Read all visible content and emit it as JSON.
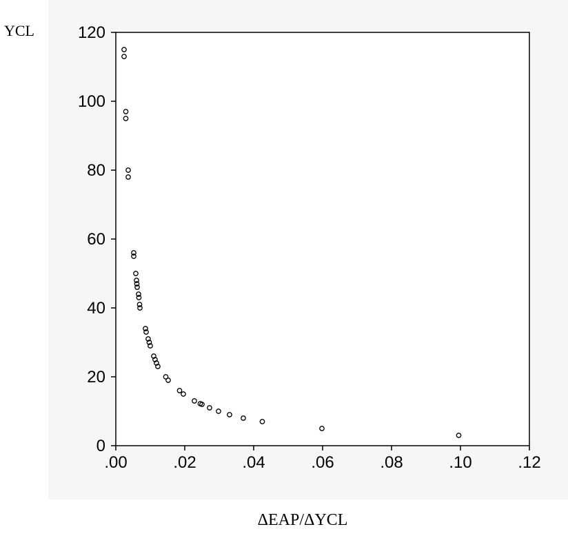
{
  "chart_data": {
    "type": "scatter",
    "title": "",
    "xlabel": "ΔEAP/ΔYCL",
    "ylabel": "YCL",
    "xlim": [
      0,
      0.12
    ],
    "ylim": [
      0,
      120
    ],
    "x_ticks": [
      ".00",
      ".02",
      ".04",
      ".06",
      ".08",
      ".10",
      ".12"
    ],
    "y_ticks": [
      "0",
      "20",
      "40",
      "60",
      "80",
      "100",
      "120"
    ],
    "grid": false,
    "legend": "none",
    "marker": "hollow-circle",
    "color": "#000000",
    "series": [
      {
        "points": [
          [
            0.0024,
            115
          ],
          [
            0.0024,
            113
          ],
          [
            0.0029,
            97
          ],
          [
            0.0029,
            95
          ],
          [
            0.0036,
            80
          ],
          [
            0.0036,
            78
          ],
          [
            0.0052,
            56
          ],
          [
            0.0052,
            55
          ],
          [
            0.0058,
            50
          ],
          [
            0.006,
            48
          ],
          [
            0.0061,
            47
          ],
          [
            0.0062,
            46
          ],
          [
            0.0066,
            44
          ],
          [
            0.0067,
            43
          ],
          [
            0.0069,
            41
          ],
          [
            0.007,
            40
          ],
          [
            0.0086,
            34
          ],
          [
            0.0088,
            33
          ],
          [
            0.0094,
            31
          ],
          [
            0.0097,
            30
          ],
          [
            0.01,
            29
          ],
          [
            0.011,
            26
          ],
          [
            0.0114,
            25
          ],
          [
            0.0118,
            24
          ],
          [
            0.0122,
            23
          ],
          [
            0.0145,
            20
          ],
          [
            0.0152,
            19
          ],
          [
            0.0185,
            16
          ],
          [
            0.0196,
            15
          ],
          [
            0.0228,
            13
          ],
          [
            0.0245,
            12.2
          ],
          [
            0.025,
            12
          ],
          [
            0.0272,
            11
          ],
          [
            0.0298,
            10
          ],
          [
            0.033,
            9
          ],
          [
            0.037,
            8
          ],
          [
            0.0425,
            7
          ],
          [
            0.0598,
            5
          ],
          [
            0.0995,
            3
          ]
        ]
      }
    ]
  }
}
